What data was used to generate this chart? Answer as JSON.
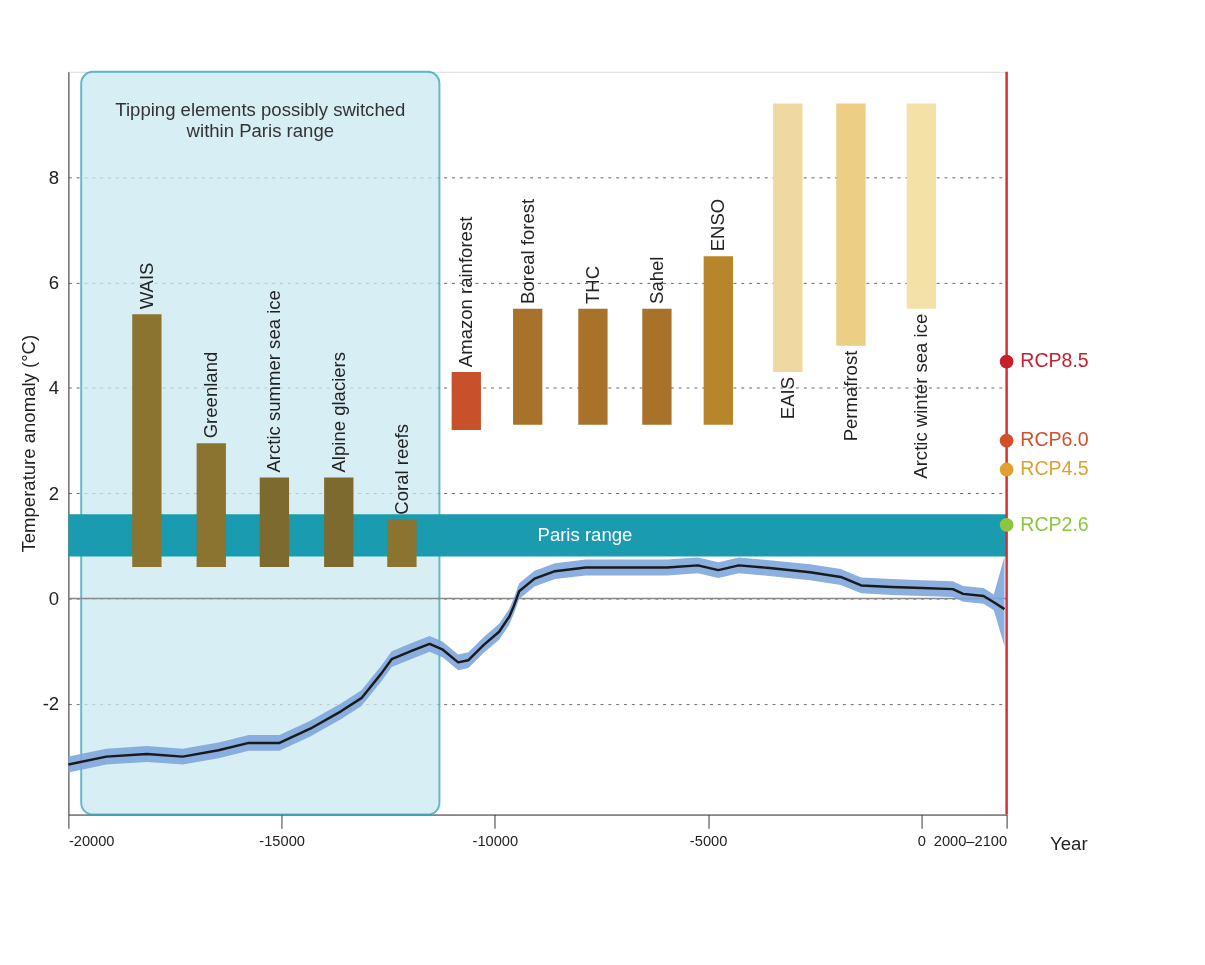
{
  "chart_data": {
    "type": "line",
    "xlabel": "Year",
    "ylabel": "Temperature anomaly (°C)",
    "xlim": [
      -20000,
      2000
    ],
    "xticks": [
      -20000,
      -15000,
      -10000,
      -5000,
      0,
      {
        "value": 2000,
        "label": "2000–2100"
      }
    ],
    "ylim": [
      -4.1,
      10
    ],
    "yticks": [
      -2,
      0,
      2,
      4,
      6,
      8
    ],
    "grid": "y",
    "series": [
      {
        "type": "bar",
        "x": [
          -18160,
          -16650,
          -15170,
          -13660,
          -12180,
          -10670,
          -9230,
          -7700,
          -6200,
          -4760,
          -3130,
          -1650,
          0
        ],
        "base": [
          0.6,
          0.6,
          0.6,
          0.6,
          0.6,
          3.2,
          3.3,
          3.3,
          3.3,
          3.3,
          4.3,
          4.8,
          5.5
        ],
        "values": [
          4.8,
          2.35,
          1.7,
          1.7,
          0.9,
          1.1,
          2.2,
          2.2,
          2.2,
          3.2,
          5.1,
          4.6,
          3.9
        ],
        "colors": [
          "#8a7430",
          "#8a7430",
          "#7d6a2e",
          "#7d6a2e",
          "#8a7430",
          "#c8502a",
          "#a8722a",
          "#a8722a",
          "#a8722a",
          "#b8862a",
          "#f0d9a0",
          "#ecce84",
          "#f3e2a8"
        ]
      },
      {
        "color": "#1a1a1a",
        "line_style": "solid",
        "x": [
          -20000,
          -19110,
          -18160,
          -17320,
          -16480,
          -15770,
          -15050,
          -14330,
          -13610,
          -13130,
          -12660,
          -12420,
          -11940,
          -11530,
          -11220,
          -10860,
          -10620,
          -10260,
          -9900,
          -9660,
          -9550,
          -9430,
          -9070,
          -8590,
          -7870,
          -6920,
          -5960,
          -5240,
          -4760,
          -4280,
          -3560,
          -2610,
          -1890,
          -1410,
          -690,
          20,
          740,
          980,
          1460,
          1700,
          1950
        ],
        "values": [
          -3.15,
          -3.0,
          -2.95,
          -3.0,
          -2.88,
          -2.74,
          -2.74,
          -2.47,
          -2.14,
          -1.89,
          -1.42,
          -1.15,
          -0.99,
          -0.86,
          -0.97,
          -1.21,
          -1.17,
          -0.88,
          -0.63,
          -0.34,
          -0.13,
          0.14,
          0.38,
          0.52,
          0.59,
          0.59,
          0.59,
          0.63,
          0.54,
          0.63,
          0.58,
          0.5,
          0.41,
          0.25,
          0.22,
          0.2,
          0.18,
          0.09,
          0.05,
          -0.07,
          -0.2
        ],
        "lower": [
          -3.3,
          -3.15,
          -3.1,
          -3.15,
          -3.03,
          -2.89,
          -2.89,
          -2.62,
          -2.29,
          -2.04,
          -1.57,
          -1.3,
          -1.14,
          -1.01,
          -1.12,
          -1.36,
          -1.32,
          -1.03,
          -0.78,
          -0.49,
          -0.28,
          -0.01,
          0.23,
          0.37,
          0.44,
          0.44,
          0.44,
          0.48,
          0.39,
          0.48,
          0.43,
          0.35,
          0.26,
          0.1,
          0.07,
          0.05,
          0.03,
          -0.06,
          -0.1,
          -0.22,
          -0.9
        ],
        "upper": [
          -3.0,
          -2.85,
          -2.8,
          -2.85,
          -2.73,
          -2.59,
          -2.59,
          -2.32,
          -1.99,
          -1.74,
          -1.27,
          -1.0,
          -0.84,
          -0.71,
          -0.82,
          -1.06,
          -1.02,
          -0.73,
          -0.48,
          -0.19,
          0.02,
          0.29,
          0.53,
          0.67,
          0.74,
          0.74,
          0.74,
          0.78,
          0.69,
          0.78,
          0.73,
          0.65,
          0.56,
          0.4,
          0.37,
          0.35,
          0.33,
          0.24,
          0.2,
          0.08,
          0.8
        ]
      },
      {
        "type": "scatter",
        "name": "RCP8.5",
        "color": "#c8202a",
        "x": [
          2000
        ],
        "values": [
          4.5
        ]
      },
      {
        "type": "scatter",
        "name": "RCP6.0",
        "color": "#d2502a",
        "x": [
          2000
        ],
        "values": [
          3.0
        ]
      },
      {
        "type": "scatter",
        "name": "RCP4.5",
        "color": "#e0a030",
        "x": [
          2000
        ],
        "values": [
          2.45
        ]
      },
      {
        "type": "scatter",
        "name": "RCP2.6",
        "color": "#8cc63f",
        "x": [
          2000
        ],
        "values": [
          1.4
        ]
      }
    ],
    "ref_lines": [
      {
        "axis": "y",
        "value": 0,
        "color": "#888888"
      },
      {
        "axis": "x",
        "value": 2000,
        "color": "#d62e2e"
      }
    ],
    "bands": [
      {
        "axis": "x",
        "from": -19700,
        "to": -11300,
        "label": "Tipping elements possibly switched within Paris range",
        "color": "#cbe9f2"
      },
      {
        "axis": "y",
        "from": 0.8,
        "to": 1.6,
        "label": "Paris range",
        "color": "#1a9bb0"
      }
    ],
    "annotations": [
      {
        "text": "WAIS",
        "x": -18160,
        "y": 5.4
      },
      {
        "text": "Greenland",
        "x": -16650,
        "y": 2.95
      },
      {
        "text": "Arctic summer sea ice",
        "x": -15170,
        "y": 2.3
      },
      {
        "text": "Alpine glaciers",
        "x": -13660,
        "y": 2.3
      },
      {
        "text": "Coral reefs",
        "x": -12180,
        "y": 1.5
      },
      {
        "text": "Amazon rainforest",
        "x": -10670,
        "y": 4.3
      },
      {
        "text": "Boreal forest",
        "x": -9230,
        "y": 5.5
      },
      {
        "text": "THC",
        "x": -7700,
        "y": 5.5
      },
      {
        "text": "Sahel",
        "x": -6200,
        "y": 5.5
      },
      {
        "text": "ENSO",
        "x": -4760,
        "y": 6.5
      },
      {
        "text": "EAIS",
        "x": -3130,
        "y": 4.3
      },
      {
        "text": "Permafrost",
        "x": -1650,
        "y": 4.8
      },
      {
        "text": "Arctic winter sea ice",
        "x": 0,
        "y": 5.5
      }
    ]
  }
}
